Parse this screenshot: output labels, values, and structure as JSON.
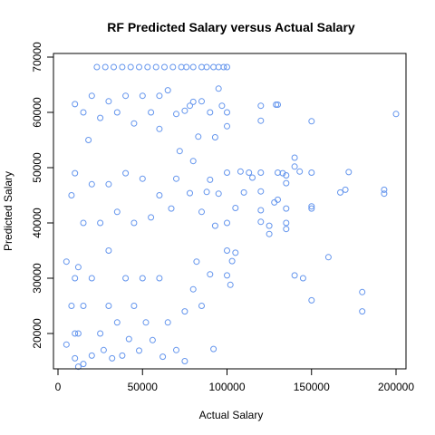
{
  "chart_data": {
    "type": "scatter",
    "title": "RF Predicted Salary versus Actual Salary",
    "xlabel": "Actual Salary",
    "ylabel": "Predicted Salary",
    "xlim": [
      0,
      210000
    ],
    "ylim": [
      12500,
      70000
    ],
    "xticks": [
      0,
      50000,
      100000,
      150000,
      200000
    ],
    "yticks": [
      20000,
      30000,
      40000,
      50000,
      60000,
      70000
    ],
    "grid": false,
    "marker": "open-circle",
    "color": "#6495ED",
    "points": [
      [
        200000,
        59700
      ],
      [
        193000,
        46000
      ],
      [
        193000,
        45300
      ],
      [
        180000,
        27500
      ],
      [
        180000,
        24000
      ],
      [
        172000,
        49200
      ],
      [
        170000,
        46000
      ],
      [
        167000,
        45500
      ],
      [
        160000,
        33800
      ],
      [
        150000,
        58400
      ],
      [
        150000,
        49100
      ],
      [
        150000,
        43000
      ],
      [
        150000,
        42600
      ],
      [
        150000,
        26000
      ],
      [
        145000,
        30000
      ],
      [
        143000,
        49300
      ],
      [
        140000,
        51800
      ],
      [
        140000,
        50200
      ],
      [
        140000,
        30500
      ],
      [
        135000,
        48600
      ],
      [
        135000,
        47200
      ],
      [
        135000,
        42600
      ],
      [
        135000,
        40000
      ],
      [
        135000,
        38900
      ],
      [
        133000,
        49000
      ],
      [
        130000,
        61400
      ],
      [
        130000,
        49100
      ],
      [
        130000,
        44200
      ],
      [
        129000,
        61400
      ],
      [
        128000,
        43700
      ],
      [
        125000,
        39500
      ],
      [
        125000,
        38000
      ],
      [
        120000,
        61200
      ],
      [
        120000,
        58500
      ],
      [
        120000,
        49100
      ],
      [
        120000,
        45700
      ],
      [
        120000,
        42300
      ],
      [
        120000,
        40200
      ],
      [
        115000,
        48200
      ],
      [
        113000,
        49100
      ],
      [
        110000,
        45500
      ],
      [
        108000,
        49300
      ],
      [
        105000,
        42700
      ],
      [
        105000,
        34600
      ],
      [
        103000,
        33100
      ],
      [
        102000,
        28800
      ],
      [
        100000,
        68200
      ],
      [
        100000,
        60000
      ],
      [
        100000,
        57500
      ],
      [
        100000,
        49100
      ],
      [
        100000,
        40000
      ],
      [
        100000,
        35000
      ],
      [
        100000,
        30500
      ],
      [
        98000,
        68200
      ],
      [
        95000,
        68200
      ],
      [
        92000,
        68200
      ],
      [
        97000,
        61200
      ],
      [
        95000,
        64300
      ],
      [
        95000,
        45300
      ],
      [
        93000,
        55500
      ],
      [
        93000,
        39500
      ],
      [
        92000,
        17200
      ],
      [
        90000,
        60000
      ],
      [
        90000,
        47800
      ],
      [
        90000,
        30700
      ],
      [
        88000,
        68200
      ],
      [
        88000,
        45600
      ],
      [
        85000,
        68200
      ],
      [
        85000,
        62000
      ],
      [
        85000,
        42000
      ],
      [
        85000,
        25000
      ],
      [
        83000,
        55600
      ],
      [
        82000,
        33000
      ],
      [
        80000,
        68200
      ],
      [
        80000,
        61900
      ],
      [
        80000,
        51200
      ],
      [
        80000,
        28000
      ],
      [
        78000,
        61200
      ],
      [
        78000,
        45400
      ],
      [
        76000,
        68200
      ],
      [
        75000,
        60300
      ],
      [
        75000,
        24000
      ],
      [
        75000,
        15000
      ],
      [
        73000,
        68200
      ],
      [
        72000,
        53000
      ],
      [
        70000,
        59700
      ],
      [
        70000,
        48000
      ],
      [
        70000,
        17000
      ],
      [
        68000,
        68200
      ],
      [
        67000,
        42600
      ],
      [
        65000,
        64000
      ],
      [
        65000,
        22000
      ],
      [
        63000,
        68200
      ],
      [
        62000,
        15800
      ],
      [
        60000,
        63000
      ],
      [
        60000,
        57000
      ],
      [
        60000,
        45000
      ],
      [
        60000,
        30000
      ],
      [
        58000,
        68200
      ],
      [
        56000,
        18800
      ],
      [
        55000,
        60000
      ],
      [
        55000,
        41000
      ],
      [
        53000,
        68200
      ],
      [
        52000,
        22000
      ],
      [
        50000,
        63000
      ],
      [
        50000,
        48000
      ],
      [
        50000,
        30000
      ],
      [
        48000,
        68200
      ],
      [
        48000,
        16900
      ],
      [
        45000,
        58000
      ],
      [
        45000,
        40000
      ],
      [
        45000,
        25000
      ],
      [
        43000,
        68200
      ],
      [
        42000,
        19000
      ],
      [
        40000,
        63000
      ],
      [
        40000,
        49000
      ],
      [
        40000,
        30000
      ],
      [
        38000,
        68200
      ],
      [
        38000,
        16000
      ],
      [
        35000,
        60000
      ],
      [
        35000,
        42000
      ],
      [
        35000,
        22000
      ],
      [
        33000,
        68200
      ],
      [
        32000,
        15500
      ],
      [
        30000,
        62000
      ],
      [
        30000,
        47000
      ],
      [
        30000,
        35000
      ],
      [
        30000,
        25000
      ],
      [
        28000,
        68200
      ],
      [
        27000,
        17000
      ],
      [
        25000,
        59000
      ],
      [
        25000,
        40000
      ],
      [
        25000,
        20000
      ],
      [
        23000,
        68200
      ],
      [
        20000,
        63000
      ],
      [
        20000,
        47000
      ],
      [
        20000,
        30000
      ],
      [
        20000,
        16000
      ],
      [
        18000,
        55000
      ],
      [
        15000,
        60000
      ],
      [
        15000,
        40000
      ],
      [
        15000,
        25000
      ],
      [
        15000,
        14500
      ],
      [
        12000,
        14000
      ],
      [
        12000,
        20000
      ],
      [
        12000,
        32000
      ],
      [
        10000,
        61500
      ],
      [
        10000,
        49000
      ],
      [
        10000,
        30000
      ],
      [
        10000,
        20000
      ],
      [
        10000,
        15500
      ],
      [
        8000,
        45000
      ],
      [
        8000,
        25000
      ],
      [
        5000,
        18000
      ],
      [
        5000,
        33000
      ]
    ]
  }
}
